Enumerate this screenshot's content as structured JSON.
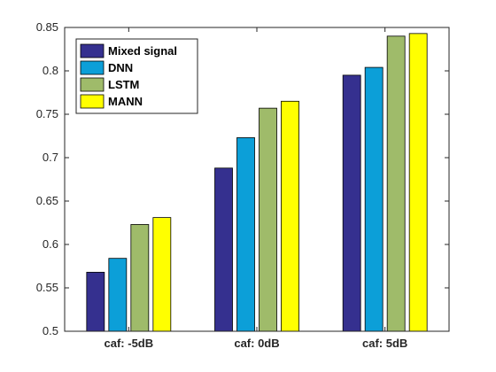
{
  "chart_data": {
    "type": "bar",
    "title": "",
    "xlabel": "",
    "ylabel": "",
    "categories": [
      "caf: -5dB",
      "caf: 0dB",
      "caf: 5dB"
    ],
    "series": [
      {
        "name": "Mixed signal",
        "values": [
          0.568,
          0.688,
          0.795
        ],
        "color": "#35308f"
      },
      {
        "name": "DNN",
        "values": [
          0.584,
          0.723,
          0.804
        ],
        "color": "#0c9fd8"
      },
      {
        "name": "LSTM",
        "values": [
          0.623,
          0.757,
          0.84
        ],
        "color": "#9fbb6a"
      },
      {
        "name": "MANN",
        "values": [
          0.631,
          0.765,
          0.843
        ],
        "color": "#ffff00"
      }
    ],
    "ylim": [
      0.5,
      0.85
    ],
    "yticks": [
      "0.5",
      "0.55",
      "0.6",
      "0.65",
      "0.7",
      "0.75",
      "0.8",
      "0.85"
    ],
    "legend": "top-left",
    "grid": false
  }
}
